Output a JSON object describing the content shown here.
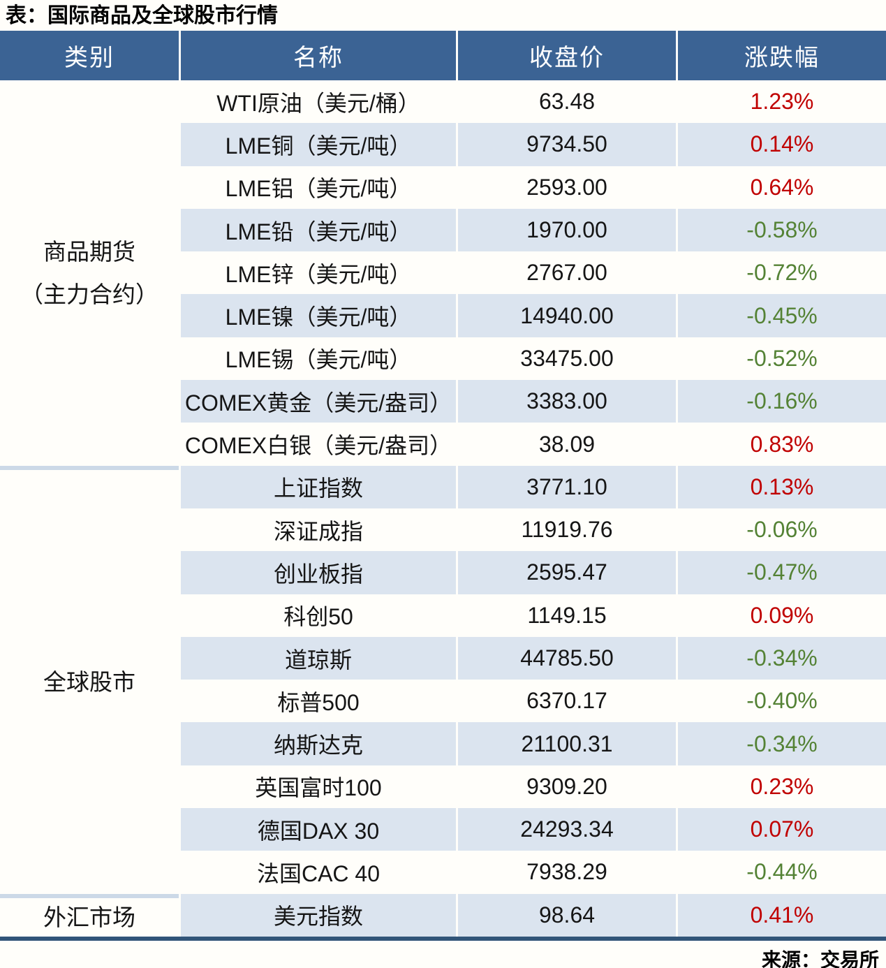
{
  "page": {
    "title": "表：国际商品及全球股市行情",
    "source": "来源：交易所"
  },
  "colors": {
    "header_bg": "#3b6394",
    "row_alt_bg": "#dbe4ef",
    "up_red": "#c00000",
    "down_green": "#548235",
    "bottom_border": "#325579",
    "section_divider": "#ccd9e7"
  },
  "table": {
    "headers": [
      "类别",
      "名称",
      "收盘价",
      "涨跌幅"
    ],
    "sections": [
      {
        "category_lines": [
          "商品期货",
          "（主力合约）"
        ],
        "rows": [
          {
            "name": "WTI原油（美元/桶）",
            "close": "63.48",
            "change": "1.23%",
            "direction": "up"
          },
          {
            "name": "LME铜（美元/吨）",
            "close": "9734.50",
            "change": "0.14%",
            "direction": "up"
          },
          {
            "name": "LME铝（美元/吨）",
            "close": "2593.00",
            "change": "0.64%",
            "direction": "up"
          },
          {
            "name": "LME铅（美元/吨）",
            "close": "1970.00",
            "change": "-0.58%",
            "direction": "down"
          },
          {
            "name": "LME锌（美元/吨）",
            "close": "2767.00",
            "change": "-0.72%",
            "direction": "down"
          },
          {
            "name": "LME镍（美元/吨）",
            "close": "14940.00",
            "change": "-0.45%",
            "direction": "down"
          },
          {
            "name": "LME锡（美元/吨）",
            "close": "33475.00",
            "change": "-0.52%",
            "direction": "down"
          },
          {
            "name": "COMEX黄金（美元/盎司）",
            "close": "3383.00",
            "change": "-0.16%",
            "direction": "down"
          },
          {
            "name": "COMEX白银（美元/盎司）",
            "close": "38.09",
            "change": "0.83%",
            "direction": "up"
          }
        ]
      },
      {
        "category_lines": [
          "全球股市"
        ],
        "rows": [
          {
            "name": "上证指数",
            "close": "3771.10",
            "change": "0.13%",
            "direction": "up"
          },
          {
            "name": "深证成指",
            "close": "11919.76",
            "change": "-0.06%",
            "direction": "down"
          },
          {
            "name": "创业板指",
            "close": "2595.47",
            "change": "-0.47%",
            "direction": "down"
          },
          {
            "name": "科创50",
            "close": "1149.15",
            "change": "0.09%",
            "direction": "up"
          },
          {
            "name": "道琼斯",
            "close": "44785.50",
            "change": "-0.34%",
            "direction": "down"
          },
          {
            "name": "标普500",
            "close": "6370.17",
            "change": "-0.40%",
            "direction": "down"
          },
          {
            "name": "纳斯达克",
            "close": "21100.31",
            "change": "-0.34%",
            "direction": "down"
          },
          {
            "name": "英国富时100",
            "close": "9309.20",
            "change": "0.23%",
            "direction": "up"
          },
          {
            "name": "德国DAX 30",
            "close": "24293.34",
            "change": "0.07%",
            "direction": "up"
          },
          {
            "name": "法国CAC 40",
            "close": "7938.29",
            "change": "-0.44%",
            "direction": "down"
          }
        ]
      },
      {
        "category_lines": [
          "外汇市场"
        ],
        "rows": [
          {
            "name": "美元指数",
            "close": "98.64",
            "change": "0.41%",
            "direction": "up"
          }
        ]
      }
    ]
  },
  "chart_data": {
    "type": "table",
    "title": "表：国际商品及全球股市行情",
    "columns": [
      "类别",
      "名称",
      "收盘价",
      "涨跌幅"
    ],
    "rows": [
      [
        "商品期货（主力合约）",
        "WTI原油（美元/桶）",
        63.48,
        "1.23%"
      ],
      [
        "商品期货（主力合约）",
        "LME铜（美元/吨）",
        9734.5,
        "0.14%"
      ],
      [
        "商品期货（主力合约）",
        "LME铝（美元/吨）",
        2593.0,
        "0.64%"
      ],
      [
        "商品期货（主力合约）",
        "LME铅（美元/吨）",
        1970.0,
        "-0.58%"
      ],
      [
        "商品期货（主力合约）",
        "LME锌（美元/吨）",
        2767.0,
        "-0.72%"
      ],
      [
        "商品期货（主力合约）",
        "LME镍（美元/吨）",
        14940.0,
        "-0.45%"
      ],
      [
        "商品期货（主力合约）",
        "LME锡（美元/吨）",
        33475.0,
        "-0.52%"
      ],
      [
        "商品期货（主力合约）",
        "COMEX黄金（美元/盎司）",
        3383.0,
        "-0.16%"
      ],
      [
        "商品期货（主力合约）",
        "COMEX白银（美元/盎司）",
        38.09,
        "0.83%"
      ],
      [
        "全球股市",
        "上证指数",
        3771.1,
        "0.13%"
      ],
      [
        "全球股市",
        "深证成指",
        11919.76,
        "-0.06%"
      ],
      [
        "全球股市",
        "创业板指",
        2595.47,
        "-0.47%"
      ],
      [
        "全球股市",
        "科创50",
        1149.15,
        "0.09%"
      ],
      [
        "全球股市",
        "道琼斯",
        44785.5,
        "-0.34%"
      ],
      [
        "全球股市",
        "标普500",
        6370.17,
        "-0.40%"
      ],
      [
        "全球股市",
        "纳斯达克",
        21100.31,
        "-0.34%"
      ],
      [
        "全球股市",
        "英国富时100",
        9309.2,
        "0.23%"
      ],
      [
        "全球股市",
        "德国DAX 30",
        24293.34,
        "0.07%"
      ],
      [
        "全球股市",
        "法国CAC 40",
        7938.29,
        "-0.44%"
      ],
      [
        "外汇市场",
        "美元指数",
        98.64,
        "0.41%"
      ]
    ],
    "source": "来源：交易所",
    "style_notes": "positive change shown red, negative shown green; rows alternate white / light blue"
  }
}
